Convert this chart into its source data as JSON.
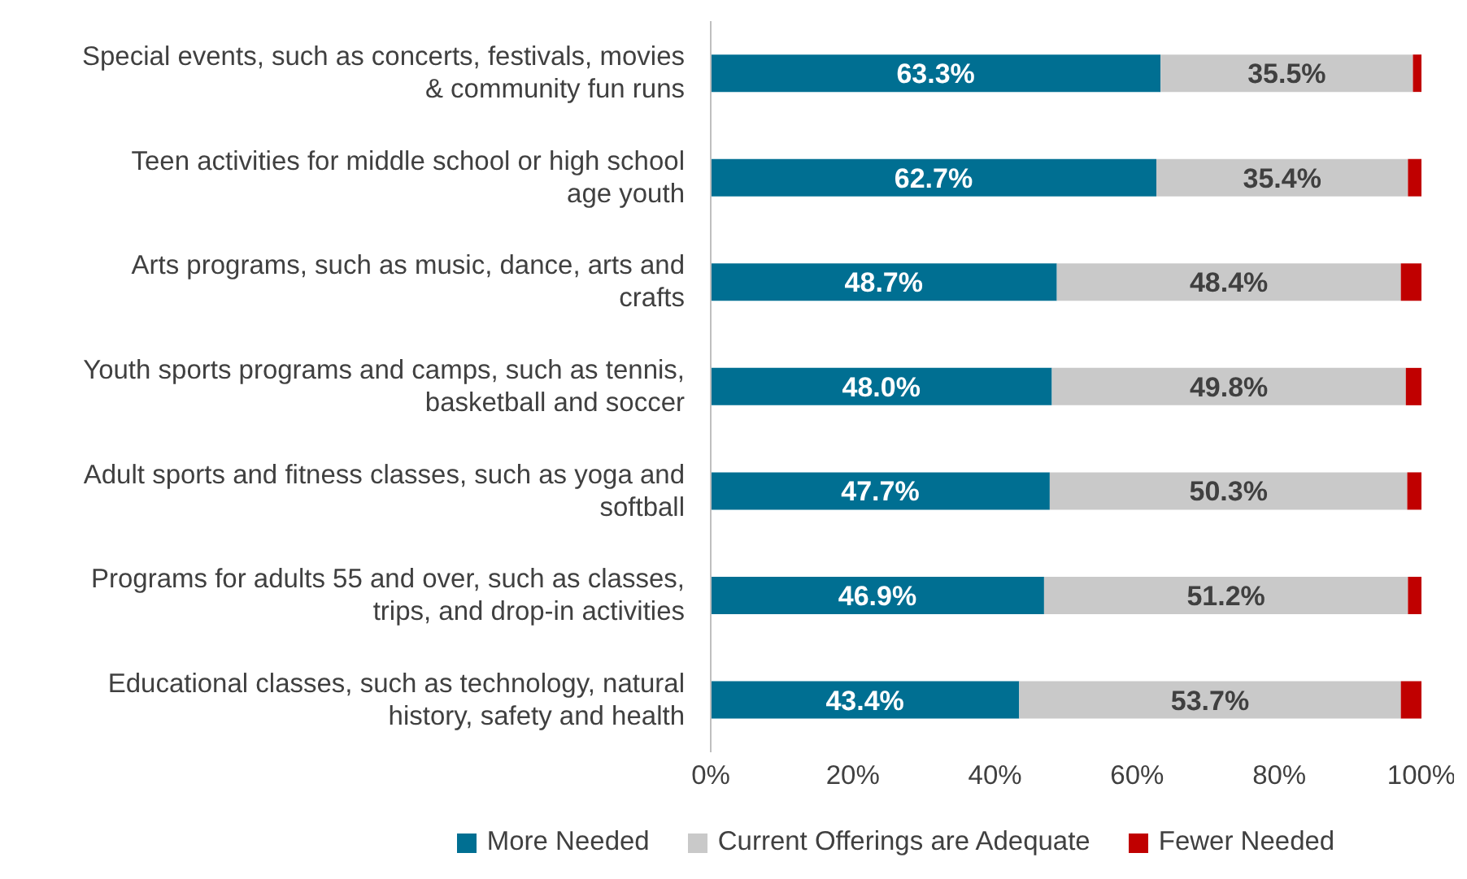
{
  "chart_data": {
    "type": "bar",
    "orientation": "horizontal",
    "stacked": true,
    "categories": [
      "Special events, such as concerts, festivals, movies & community fun runs",
      "Teen activities for middle school or high school age youth",
      "Arts programs, such as music, dance, arts and crafts",
      "Youth sports programs and camps, such as tennis, basketball and soccer",
      "Adult sports and fitness classes, such as yoga and softball",
      "Programs for adults 55 and over, such as classes, trips, and drop-in activities",
      "Educational classes, such as technology, natural history, safety and health"
    ],
    "series": [
      {
        "name": "More Needed",
        "color": "#006f92",
        "values": [
          63.3,
          62.7,
          48.7,
          48.0,
          47.7,
          46.9,
          43.4
        ],
        "value_labels": [
          "63.3%",
          "62.7%",
          "48.7%",
          "48.0%",
          "47.7%",
          "46.9%",
          "43.4%"
        ]
      },
      {
        "name": "Current Offerings are Adequate",
        "color": "#c9c9c9",
        "values": [
          35.5,
          35.4,
          48.4,
          49.8,
          50.3,
          51.2,
          53.7
        ],
        "value_labels": [
          "35.5%",
          "35.4%",
          "48.4%",
          "49.8%",
          "50.3%",
          "51.2%",
          "53.7%"
        ]
      },
      {
        "name": "Fewer Needed",
        "color": "#c00000",
        "values": [
          1.2,
          1.9,
          2.9,
          2.2,
          2.0,
          1.9,
          2.9
        ]
      }
    ],
    "xlim": [
      0,
      100
    ],
    "xticks": [
      {
        "value": 0,
        "label": "0%"
      },
      {
        "value": 20,
        "label": "20%"
      },
      {
        "value": 40,
        "label": "40%"
      },
      {
        "value": 60,
        "label": "60%"
      },
      {
        "value": 80,
        "label": "80%"
      },
      {
        "value": 100,
        "label": "100%"
      }
    ],
    "grid": false,
    "legend": "bottom"
  }
}
